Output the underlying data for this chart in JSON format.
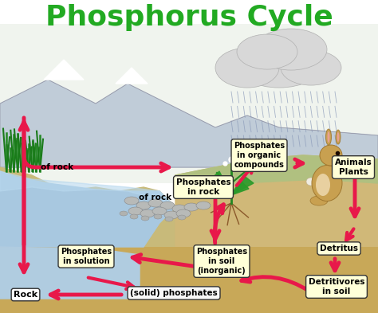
{
  "title": "Phosphorus Cycle",
  "title_color": "#22aa22",
  "title_fontsize": 26,
  "bg_color": "#ffffff",
  "sky_color": "#e8f0e8",
  "mountain_color": "#a8b8c8",
  "mountain_edge": "#8898a8",
  "water_color": "#a8c8e0",
  "ground_color": "#c8ba80",
  "ground_dark": "#b8a060",
  "underground_color": "#d4b870",
  "solution_water": "#b8d8f0",
  "arrow_color": "#e8184a",
  "box_fill": "#ffffd8",
  "box_fill_white": "#ffffff",
  "box_edge": "#000000",
  "grass_color": "#228822",
  "rock_color": "#b0b8b0",
  "rabbit_body": "#c8a060",
  "cloud_color": "#d8d8d8",
  "rain_color": "#8898c0",
  "text_labels": {
    "of_rock_left": "of rock",
    "of_rock_mid": "of rock",
    "phosphates_rock": "Phosphates\nin rock",
    "phosphates_organic": "Phosphates\nin organic\ncompounds",
    "animals_plants": "Animals\nPlants",
    "detritus": "Detritus",
    "detritivores": "Detritivores\nin soil",
    "phosphates_solution": "Phosphates\nin solution",
    "phosphates_soil": "Phosphates\nin soil\n(inorganic)",
    "solid_phosphates": "(solid) phosphates",
    "rock": "Rock"
  }
}
